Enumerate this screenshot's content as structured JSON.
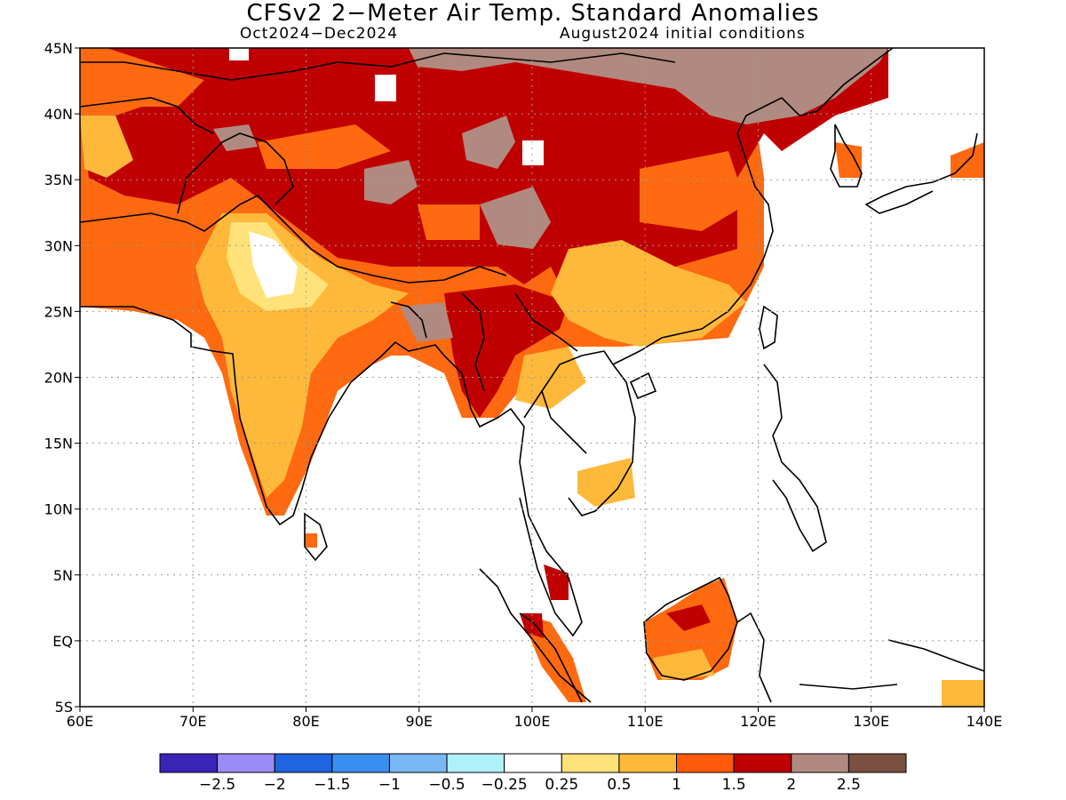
{
  "title": "CFSv2 2−Meter Air Temp. Standard Anomalies",
  "subtitle_left": "Oct2024−Dec2024",
  "subtitle_right": "August2024 initial conditions",
  "map": {
    "lon_range": [
      60,
      140
    ],
    "lat_range": [
      -5,
      45
    ],
    "lon_ticks": [
      {
        "value": 60,
        "label": "60E"
      },
      {
        "value": 70,
        "label": "70E"
      },
      {
        "value": 80,
        "label": "80E"
      },
      {
        "value": 90,
        "label": "90E"
      },
      {
        "value": 100,
        "label": "100E"
      },
      {
        "value": 110,
        "label": "110E"
      },
      {
        "value": 120,
        "label": "120E"
      },
      {
        "value": 130,
        "label": "130E"
      },
      {
        "value": 140,
        "label": "140E"
      }
    ],
    "lat_ticks": [
      {
        "value": 45,
        "label": "45N"
      },
      {
        "value": 40,
        "label": "40N"
      },
      {
        "value": 35,
        "label": "35N"
      },
      {
        "value": 30,
        "label": "30N"
      },
      {
        "value": 25,
        "label": "25N"
      },
      {
        "value": 20,
        "label": "20N"
      },
      {
        "value": 15,
        "label": "15N"
      },
      {
        "value": 10,
        "label": "10N"
      },
      {
        "value": 5,
        "label": "5N"
      },
      {
        "value": 0,
        "label": "EQ"
      },
      {
        "value": -5,
        "label": "5S"
      }
    ],
    "grid": "dotted"
  },
  "colorbar": {
    "colors": [
      "#3a24b8",
      "#9b8cf5",
      "#1f64e0",
      "#3a8ef0",
      "#7ab8f5",
      "#b0f0f8",
      "#ffffff",
      "#ffe27a",
      "#ffb93a",
      "#ff5a0a",
      "#c00000",
      "#b08a80",
      "#7a5040"
    ],
    "labels": [
      "−2.5",
      "−2",
      "−1.5",
      "−1",
      "−0.5",
      "−0.25",
      "0.25",
      "0.5",
      "1",
      "1.5",
      "2",
      "2.5"
    ]
  }
}
